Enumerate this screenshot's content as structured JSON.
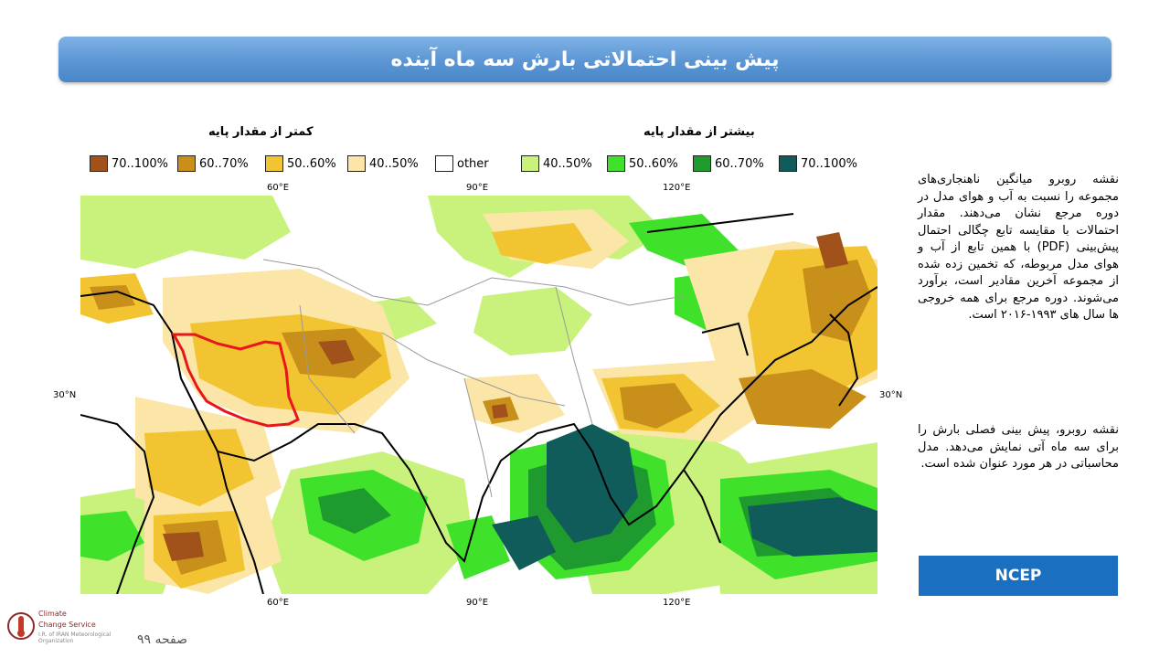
{
  "title": "پیش بینی احتمالاتی بارش سه ماه آینده",
  "legend": {
    "below_label": "کمتر از مقدار پایه",
    "above_label": "بیشتر از مقدار پایه",
    "items": [
      {
        "label": "70..100%",
        "color": "#a0521a"
      },
      {
        "label": "60..70%",
        "color": "#c98f1b"
      },
      {
        "label": "50..60%",
        "color": "#f2c431"
      },
      {
        "label": "40..50%",
        "color": "#fbe6a8"
      },
      {
        "label": "other",
        "color": "#ffffff"
      },
      {
        "label": "40..50%",
        "color": "#c9f27c"
      },
      {
        "label": "50..60%",
        "color": "#3fe12b"
      },
      {
        "label": "60..70%",
        "color": "#1f9a2e"
      },
      {
        "label": "70..100%",
        "color": "#0f5c5a"
      }
    ]
  },
  "map_axes": {
    "lon_ticks": [
      "60°E",
      "90°E",
      "120°E"
    ],
    "lat_left": "30°N",
    "lat_right": "30°N"
  },
  "description_1": "نقشه روبرو میانگین ناهنجاری‌های مجموعه را نسبت به آب و هوای مدل در دوره مرجع نشان می‌دهند. مقدار احتمالات با مقایسه تابع چگالی احتمال پیش‌بینی (PDF) با همین تابع از آب و هوای مدل مربوطه، که تخمین زده شده از مجموعه آخرین مقادیر است، برآورد می‌شوند. دوره مرجع برای همه خروجی ها سال های ۱۹۹۳-۲۰۱۶ است.",
  "description_2": "نقشه روبرو، پیش بینی فصلی بارش را برای سه ماه آتی نمایش می‌دهد. مدل محاسباتی در هر مورد عنوان شده است.",
  "model_name": "NCEP",
  "page_number": "صفحه ۹۹",
  "logo": {
    "line1": "Climate",
    "line2": "Change Service",
    "line3": "I.R. of IRAN Meteorological Organization"
  }
}
